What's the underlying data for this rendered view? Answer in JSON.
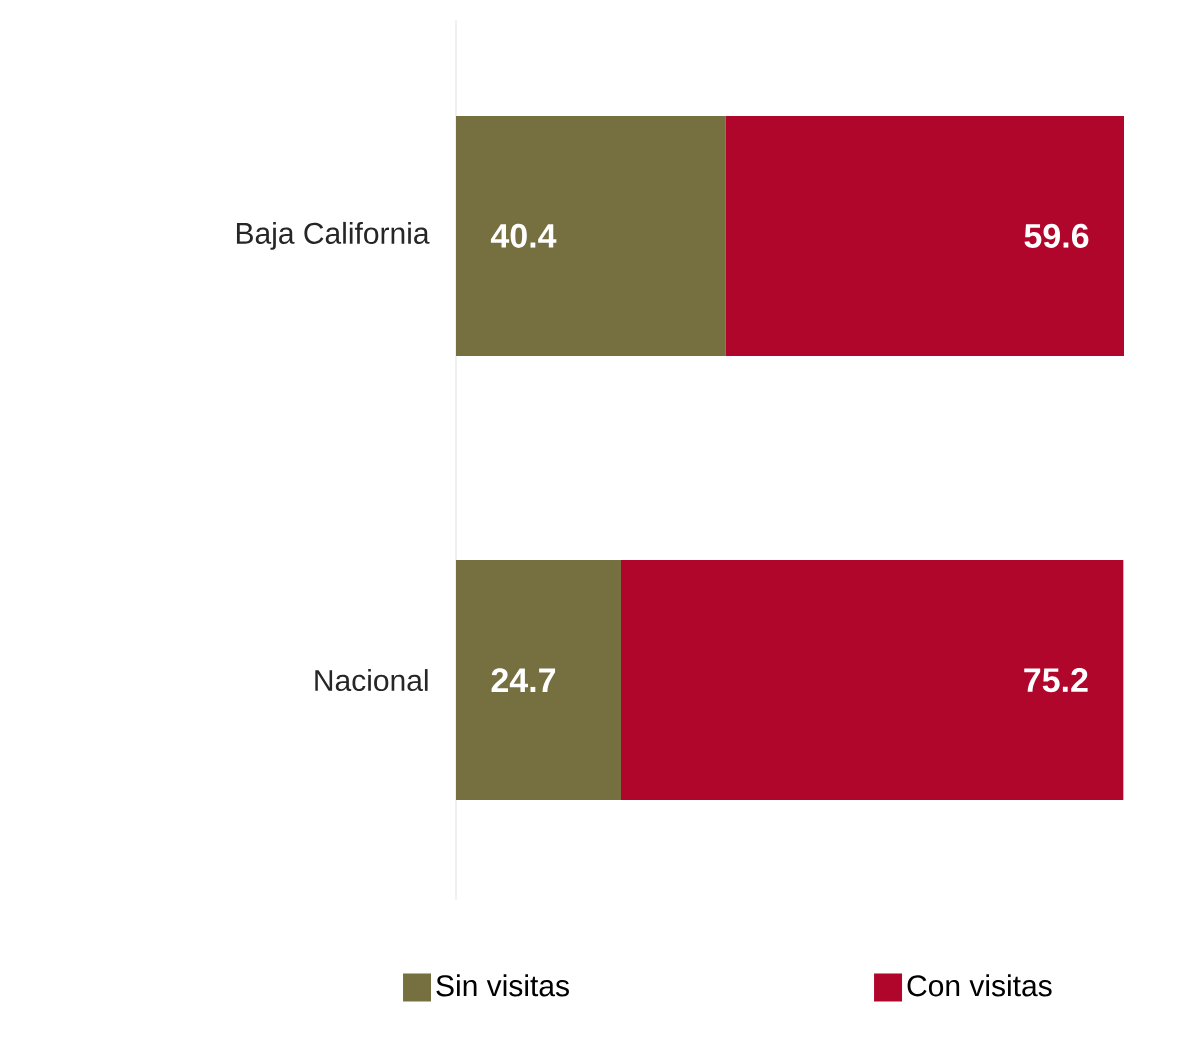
{
  "chart_data": {
    "type": "bar",
    "orientation": "horizontal",
    "stacked": true,
    "data_labels": true,
    "legend": "bottom",
    "categories": [
      "Baja California",
      "Nacional"
    ],
    "series": [
      {
        "name": "Sin visitas",
        "color": "#766f40",
        "values": [
          40.4,
          24.7
        ]
      },
      {
        "name": "Con visitas",
        "color": "#b0062c",
        "values": [
          59.6,
          75.2
        ]
      }
    ]
  }
}
